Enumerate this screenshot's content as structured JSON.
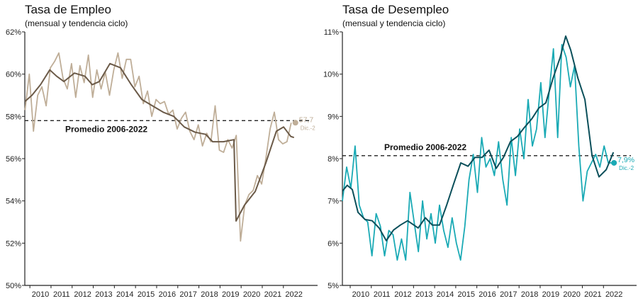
{
  "chart_data": [
    {
      "type": "line",
      "title": "Tasa de Empleo",
      "subtitle": "(mensual y tendencia ciclo)",
      "xlabel": "",
      "ylabel": "",
      "ylim": [
        50,
        62
      ],
      "xlim": [
        2009.26,
        2022.85
      ],
      "yticks": [
        50,
        52,
        54,
        56,
        58,
        60,
        62
      ],
      "ytick_labels": [
        "50%",
        "52%",
        "54%",
        "56%",
        "58%",
        "60%",
        "62%"
      ],
      "xtick_labels": [
        "2010",
        "2011",
        "2012",
        "2013",
        "2014",
        "2015",
        "2016",
        "2017",
        "2018",
        "2019",
        "2020",
        "2021",
        "2022"
      ],
      "grid": false,
      "monthly": {
        "name": "mensual",
        "color": "#bfae98",
        "x_start": 2009.27,
        "x_step": 0.2,
        "values": [
          58.3,
          60.0,
          57.3,
          59.0,
          59.4,
          58.5,
          60.3,
          60.6,
          61.0,
          59.8,
          59.3,
          60.5,
          58.9,
          60.4,
          59.6,
          60.9,
          58.9,
          60.2,
          59.3,
          60.1,
          59.0,
          60.2,
          61.0,
          59.8,
          60.7,
          60.7,
          59.4,
          59.9,
          58.6,
          59.2,
          58.0,
          58.8,
          58.6,
          58.7,
          58.1,
          58.3,
          57.4,
          57.9,
          58.2,
          57.3,
          56.9,
          57.6,
          56.6,
          57.2,
          56.8,
          58.5,
          56.4,
          56.3,
          56.9,
          56.5,
          57.1,
          52.1,
          53.8,
          54.3,
          54.5,
          55.2,
          54.8,
          56.0,
          57.4,
          58.2,
          56.9,
          56.7,
          56.8,
          57.7
        ]
      },
      "trend": {
        "name": "tendencia ciclo",
        "color": "#6b5a48",
        "points": [
          [
            2009.26,
            58.7
          ],
          [
            2009.6,
            59.0
          ],
          [
            2010.0,
            59.5
          ],
          [
            2010.44,
            60.2
          ],
          [
            2010.77,
            59.9
          ],
          [
            2011.11,
            59.65
          ],
          [
            2011.61,
            60.05
          ],
          [
            2012.11,
            59.9
          ],
          [
            2012.45,
            59.5
          ],
          [
            2012.79,
            59.65
          ],
          [
            2013.29,
            60.5
          ],
          [
            2013.79,
            60.3
          ],
          [
            2014.3,
            59.5
          ],
          [
            2014.8,
            58.8
          ],
          [
            2015.3,
            58.5
          ],
          [
            2015.81,
            58.2
          ],
          [
            2016.31,
            58.0
          ],
          [
            2016.81,
            57.5
          ],
          [
            2017.32,
            57.25
          ],
          [
            2017.82,
            57.15
          ],
          [
            2018.15,
            56.8
          ],
          [
            2018.66,
            56.8
          ],
          [
            2019.16,
            56.9
          ],
          [
            2019.26,
            53.05
          ],
          [
            2019.66,
            53.8
          ],
          [
            2020.17,
            54.45
          ],
          [
            2020.67,
            55.8
          ],
          [
            2021.17,
            57.3
          ],
          [
            2021.51,
            57.5
          ],
          [
            2021.85,
            57.05
          ],
          [
            2022.0,
            57.0
          ]
        ]
      },
      "average": {
        "label": "Promedio 2006-2022",
        "value": 57.8
      },
      "last_point": {
        "value": 57.7,
        "value_label": "57,7",
        "date_label": "Dic.-2",
        "x": 2022.07
      }
    },
    {
      "type": "line",
      "title": "Tasa de Desempleo",
      "subtitle": "(mensual y tendencia ciclo)",
      "xlabel": "",
      "ylabel": "",
      "ylim": [
        5,
        11
      ],
      "xlim": [
        2009.13,
        2022.8
      ],
      "yticks": [
        5,
        6,
        7,
        8,
        9,
        10,
        11
      ],
      "ytick_labels": [
        "5%",
        "6%",
        "7%",
        "8%",
        "9%",
        "10%",
        "11%"
      ],
      "xtick_labels": [
        "2010",
        "2011",
        "2012",
        "2013",
        "2014",
        "2015",
        "2016",
        "2017",
        "2018",
        "2019",
        "2020",
        "2021",
        "2022"
      ],
      "grid": false,
      "monthly": {
        "name": "mensual",
        "color": "#1aaab5",
        "x_start": 2009.13,
        "x_step": 0.2,
        "values": [
          7.0,
          7.8,
          7.3,
          8.3,
          6.9,
          6.6,
          6.5,
          5.7,
          6.7,
          6.4,
          5.7,
          6.3,
          6.2,
          5.6,
          6.1,
          5.6,
          7.2,
          6.5,
          5.8,
          7.0,
          6.1,
          6.7,
          6.0,
          6.9,
          6.3,
          5.9,
          6.6,
          6.0,
          5.6,
          6.4,
          7.5,
          8.1,
          7.2,
          8.5,
          7.8,
          8.0,
          7.6,
          8.4,
          7.5,
          6.9,
          8.5,
          7.6,
          8.7,
          8.0,
          9.4,
          8.3,
          8.7,
          9.8,
          8.5,
          9.6,
          10.6,
          8.5,
          10.7,
          10.4,
          9.7,
          10.2,
          8.3,
          7.0,
          7.7,
          7.9,
          8.1,
          7.8,
          8.3,
          7.9,
          7.9
        ]
      },
      "trend": {
        "name": "tendencia ciclo",
        "color": "#0b4f5a",
        "points": [
          [
            2009.13,
            7.23
          ],
          [
            2009.36,
            7.37
          ],
          [
            2009.6,
            7.27
          ],
          [
            2009.87,
            6.73
          ],
          [
            2010.2,
            6.56
          ],
          [
            2010.54,
            6.53
          ],
          [
            2010.87,
            6.36
          ],
          [
            2011.21,
            6.06
          ],
          [
            2011.55,
            6.31
          ],
          [
            2011.88,
            6.43
          ],
          [
            2012.22,
            6.53
          ],
          [
            2012.72,
            6.36
          ],
          [
            2013.06,
            6.6
          ],
          [
            2013.39,
            6.43
          ],
          [
            2013.73,
            6.43
          ],
          [
            2014.07,
            6.9
          ],
          [
            2014.4,
            7.4
          ],
          [
            2014.74,
            7.9
          ],
          [
            2015.08,
            7.82
          ],
          [
            2015.41,
            8.03
          ],
          [
            2015.75,
            8.03
          ],
          [
            2016.08,
            8.2
          ],
          [
            2016.42,
            7.77
          ],
          [
            2016.76,
            8.03
          ],
          [
            2017.09,
            8.4
          ],
          [
            2017.43,
            8.53
          ],
          [
            2017.76,
            8.74
          ],
          [
            2018.1,
            8.94
          ],
          [
            2018.44,
            9.2
          ],
          [
            2018.77,
            9.32
          ],
          [
            2019.11,
            9.9
          ],
          [
            2019.45,
            10.4
          ],
          [
            2019.71,
            10.9
          ],
          [
            2019.95,
            10.57
          ],
          [
            2020.29,
            9.9
          ],
          [
            2020.62,
            9.4
          ],
          [
            2020.96,
            8.07
          ],
          [
            2021.29,
            7.57
          ],
          [
            2021.63,
            7.74
          ],
          [
            2021.97,
            8.15
          ]
        ]
      },
      "average": {
        "label": "Promedio 2006-2022",
        "value": 8.07
      },
      "last_point": {
        "value": 7.9,
        "value_label": "7,9%",
        "date_label": "Dic.-2",
        "x": 2022.0
      }
    }
  ]
}
